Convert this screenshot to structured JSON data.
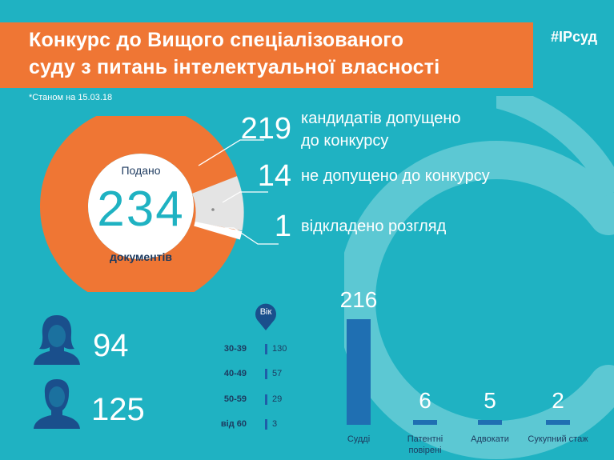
{
  "header": {
    "title_line1": "Конкурс до Вищого спеціалізованого",
    "title_line2": "суду з питань інтелектуальної власності",
    "hashtag": "#IPсуд",
    "note": "*Станом на 15.03.18"
  },
  "donut": {
    "top_label": "Подано",
    "total": "234",
    "bottom_label": "документів"
  },
  "stats": [
    {
      "value": "219",
      "text_line1": "кандидатів допущено",
      "text_line2": "до конкурсу"
    },
    {
      "value": "14",
      "text_line1": "не допущено до конкурсу",
      "text_line2": ""
    },
    {
      "value": "1",
      "text_line1": "відкладено розгляд",
      "text_line2": ""
    }
  ],
  "gender": {
    "women_icon": "woman-icon",
    "women_count": "94",
    "men_icon": "man-icon",
    "men_count": "125"
  },
  "age": {
    "badge": "Вік",
    "groups": [
      {
        "label": "30-39",
        "value": "130"
      },
      {
        "label": "40-49",
        "value": "57"
      },
      {
        "label": "50-59",
        "value": "29"
      },
      {
        "label": "від 60",
        "value": "3"
      }
    ]
  },
  "chart_data": {
    "type": "bar",
    "categories": [
      "Судді",
      "Патентні повірені",
      "Адвокати",
      "Сукупний стаж"
    ],
    "values": [
      216,
      6,
      5,
      2
    ],
    "labels": [
      "216",
      "6",
      "5",
      "2"
    ]
  },
  "colors": {
    "background": "#1fb2c2",
    "accent_orange": "#ef7634",
    "bar_blue": "#1f6fb2",
    "dark_text": "#1d3a5f"
  }
}
